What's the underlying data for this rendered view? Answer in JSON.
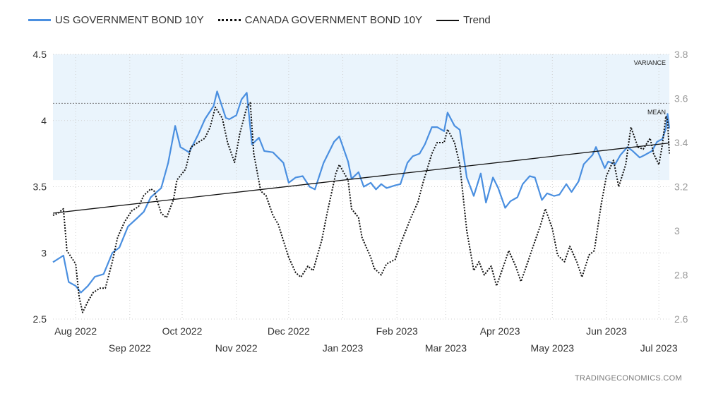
{
  "legend": {
    "us_label": "US GOVERNMENT BOND 10Y",
    "ca_label": "CANADA GOVERNMENT BOND 10Y",
    "trend_label": "Trend"
  },
  "source_label": "TRADINGECONOMICS.COM",
  "colors": {
    "us": "#4a8fe0",
    "ca": "#111111",
    "trend": "#111111",
    "band": "#eaf4fc",
    "grid": "#cfcfcf"
  },
  "chart_data": {
    "type": "line",
    "x_labels_upper": [
      "Aug 2022",
      "Oct 2022",
      "Dec 2022",
      "Feb 2023",
      "Apr 2023",
      "Jun 2023"
    ],
    "x_labels_lower": [
      "Sep 2022",
      "Nov 2022",
      "Jan 2023",
      "Mar 2023",
      "May 2023",
      "Jul 2023"
    ],
    "x_range": [
      "2022-07-19",
      "2023-07-07"
    ],
    "y_left": {
      "ticks": [
        "2.5",
        "3",
        "3.5",
        "4",
        "4.5"
      ],
      "ylim": [
        2.5,
        4.5
      ]
    },
    "y_right": {
      "ticks": [
        "2.6",
        "2.8",
        "3",
        "3.2",
        "3.4",
        "3.6",
        "3.8"
      ],
      "ylim": [
        2.6,
        3.8
      ]
    },
    "annotations": {
      "variance": "VARIANCE",
      "mean": "MEAN"
    },
    "variance_band": {
      "axis": "left",
      "from": 3.55,
      "to": 4.5
    },
    "mean_line": {
      "axis": "left",
      "value": 4.13
    },
    "grid": true,
    "legend_position": "top-left",
    "series": [
      {
        "name": "US GOVERNMENT BOND 10Y",
        "axis": "left",
        "points": [
          [
            "2022-07-19",
            2.93
          ],
          [
            "2022-07-25",
            2.98
          ],
          [
            "2022-07-28",
            2.78
          ],
          [
            "2022-08-01",
            2.75
          ],
          [
            "2022-08-04",
            2.7
          ],
          [
            "2022-08-08",
            2.75
          ],
          [
            "2022-08-12",
            2.82
          ],
          [
            "2022-08-17",
            2.84
          ],
          [
            "2022-08-22",
            3.0
          ],
          [
            "2022-08-26",
            3.04
          ],
          [
            "2022-08-31",
            3.2
          ],
          [
            "2022-09-05",
            3.26
          ],
          [
            "2022-09-09",
            3.31
          ],
          [
            "2022-09-13",
            3.42
          ],
          [
            "2022-09-19",
            3.49
          ],
          [
            "2022-09-23",
            3.68
          ],
          [
            "2022-09-27",
            3.96
          ],
          [
            "2022-09-30",
            3.8
          ],
          [
            "2022-10-05",
            3.76
          ],
          [
            "2022-10-10",
            3.89
          ],
          [
            "2022-10-14",
            4.01
          ],
          [
            "2022-10-19",
            4.11
          ],
          [
            "2022-10-21",
            4.22
          ],
          [
            "2022-10-26",
            4.02
          ],
          [
            "2022-10-28",
            4.01
          ],
          [
            "2022-11-01",
            4.04
          ],
          [
            "2022-11-04",
            4.16
          ],
          [
            "2022-11-07",
            4.21
          ],
          [
            "2022-11-10",
            3.82
          ],
          [
            "2022-11-14",
            3.87
          ],
          [
            "2022-11-17",
            3.77
          ],
          [
            "2022-11-22",
            3.76
          ],
          [
            "2022-11-28",
            3.68
          ],
          [
            "2022-12-01",
            3.53
          ],
          [
            "2022-12-05",
            3.57
          ],
          [
            "2022-12-09",
            3.58
          ],
          [
            "2022-12-13",
            3.5
          ],
          [
            "2022-12-16",
            3.48
          ],
          [
            "2022-12-21",
            3.68
          ],
          [
            "2022-12-27",
            3.84
          ],
          [
            "2022-12-30",
            3.88
          ],
          [
            "2023-01-04",
            3.69
          ],
          [
            "2023-01-06",
            3.56
          ],
          [
            "2023-01-10",
            3.61
          ],
          [
            "2023-01-13",
            3.5
          ],
          [
            "2023-01-17",
            3.53
          ],
          [
            "2023-01-20",
            3.48
          ],
          [
            "2023-01-23",
            3.52
          ],
          [
            "2023-01-26",
            3.49
          ],
          [
            "2023-01-31",
            3.51
          ],
          [
            "2023-02-03",
            3.52
          ],
          [
            "2023-02-07",
            3.68
          ],
          [
            "2023-02-10",
            3.73
          ],
          [
            "2023-02-14",
            3.75
          ],
          [
            "2023-02-17",
            3.82
          ],
          [
            "2023-02-21",
            3.95
          ],
          [
            "2023-02-24",
            3.95
          ],
          [
            "2023-02-28",
            3.92
          ],
          [
            "2023-03-02",
            4.06
          ],
          [
            "2023-03-06",
            3.96
          ],
          [
            "2023-03-09",
            3.93
          ],
          [
            "2023-03-13",
            3.57
          ],
          [
            "2023-03-17",
            3.43
          ],
          [
            "2023-03-21",
            3.6
          ],
          [
            "2023-03-24",
            3.38
          ],
          [
            "2023-03-28",
            3.57
          ],
          [
            "2023-03-31",
            3.49
          ],
          [
            "2023-04-04",
            3.34
          ],
          [
            "2023-04-07",
            3.39
          ],
          [
            "2023-04-11",
            3.42
          ],
          [
            "2023-04-14",
            3.52
          ],
          [
            "2023-04-18",
            3.58
          ],
          [
            "2023-04-21",
            3.57
          ],
          [
            "2023-04-25",
            3.4
          ],
          [
            "2023-04-28",
            3.45
          ],
          [
            "2023-05-02",
            3.43
          ],
          [
            "2023-05-05",
            3.44
          ],
          [
            "2023-05-09",
            3.52
          ],
          [
            "2023-05-12",
            3.46
          ],
          [
            "2023-05-16",
            3.54
          ],
          [
            "2023-05-19",
            3.67
          ],
          [
            "2023-05-24",
            3.74
          ],
          [
            "2023-05-26",
            3.8
          ],
          [
            "2023-05-31",
            3.64
          ],
          [
            "2023-06-02",
            3.69
          ],
          [
            "2023-06-06",
            3.67
          ],
          [
            "2023-06-09",
            3.74
          ],
          [
            "2023-06-13",
            3.8
          ],
          [
            "2023-06-16",
            3.77
          ],
          [
            "2023-06-20",
            3.72
          ],
          [
            "2023-06-23",
            3.74
          ],
          [
            "2023-06-27",
            3.77
          ],
          [
            "2023-06-30",
            3.84
          ],
          [
            "2023-07-03",
            3.86
          ],
          [
            "2023-07-05",
            3.94
          ],
          [
            "2023-07-06",
            4.05
          ],
          [
            "2023-07-07",
            3.94
          ]
        ]
      },
      {
        "name": "CANADA GOVERNMENT BOND 10Y",
        "axis": "right",
        "points": [
          [
            "2022-07-19",
            3.07
          ],
          [
            "2022-07-22",
            3.08
          ],
          [
            "2022-07-25",
            3.1
          ],
          [
            "2022-07-27",
            2.91
          ],
          [
            "2022-08-01",
            2.85
          ],
          [
            "2022-08-03",
            2.7
          ],
          [
            "2022-08-05",
            2.63
          ],
          [
            "2022-08-08",
            2.68
          ],
          [
            "2022-08-11",
            2.72
          ],
          [
            "2022-08-15",
            2.74
          ],
          [
            "2022-08-18",
            2.74
          ],
          [
            "2022-08-22",
            2.86
          ],
          [
            "2022-08-25",
            2.97
          ],
          [
            "2022-08-29",
            3.04
          ],
          [
            "2022-09-02",
            3.09
          ],
          [
            "2022-09-06",
            3.11
          ],
          [
            "2022-09-09",
            3.16
          ],
          [
            "2022-09-13",
            3.19
          ],
          [
            "2022-09-15",
            3.18
          ],
          [
            "2022-09-19",
            3.08
          ],
          [
            "2022-09-22",
            3.06
          ],
          [
            "2022-09-26",
            3.14
          ],
          [
            "2022-09-28",
            3.23
          ],
          [
            "2022-10-03",
            3.28
          ],
          [
            "2022-10-06",
            3.38
          ],
          [
            "2022-10-10",
            3.4
          ],
          [
            "2022-10-14",
            3.42
          ],
          [
            "2022-10-17",
            3.47
          ],
          [
            "2022-10-20",
            3.56
          ],
          [
            "2022-10-24",
            3.51
          ],
          [
            "2022-10-27",
            3.4
          ],
          [
            "2022-10-31",
            3.31
          ],
          [
            "2022-11-03",
            3.44
          ],
          [
            "2022-11-07",
            3.56
          ],
          [
            "2022-11-09",
            3.58
          ],
          [
            "2022-11-11",
            3.35
          ],
          [
            "2022-11-15",
            3.18
          ],
          [
            "2022-11-18",
            3.16
          ],
          [
            "2022-11-22",
            3.07
          ],
          [
            "2022-11-25",
            3.03
          ],
          [
            "2022-11-29",
            2.93
          ],
          [
            "2022-12-01",
            2.88
          ],
          [
            "2022-12-05",
            2.81
          ],
          [
            "2022-12-08",
            2.79
          ],
          [
            "2022-12-12",
            2.84
          ],
          [
            "2022-12-15",
            2.82
          ],
          [
            "2022-12-20",
            2.96
          ],
          [
            "2022-12-23",
            3.08
          ],
          [
            "2022-12-28",
            3.26
          ],
          [
            "2022-12-30",
            3.3
          ],
          [
            "2023-01-04",
            3.23
          ],
          [
            "2023-01-06",
            3.1
          ],
          [
            "2023-01-10",
            3.06
          ],
          [
            "2023-01-12",
            2.97
          ],
          [
            "2023-01-17",
            2.88
          ],
          [
            "2023-01-19",
            2.83
          ],
          [
            "2023-01-23",
            2.8
          ],
          [
            "2023-01-26",
            2.85
          ],
          [
            "2023-01-31",
            2.87
          ],
          [
            "2023-02-03",
            2.94
          ],
          [
            "2023-02-06",
            3.0
          ],
          [
            "2023-02-09",
            3.06
          ],
          [
            "2023-02-13",
            3.13
          ],
          [
            "2023-02-16",
            3.22
          ],
          [
            "2023-02-21",
            3.35
          ],
          [
            "2023-02-24",
            3.4
          ],
          [
            "2023-02-28",
            3.4
          ],
          [
            "2023-03-02",
            3.46
          ],
          [
            "2023-03-06",
            3.4
          ],
          [
            "2023-03-09",
            3.3
          ],
          [
            "2023-03-13",
            3.0
          ],
          [
            "2023-03-17",
            2.82
          ],
          [
            "2023-03-20",
            2.86
          ],
          [
            "2023-03-23",
            2.8
          ],
          [
            "2023-03-27",
            2.84
          ],
          [
            "2023-03-30",
            2.75
          ],
          [
            "2023-04-03",
            2.84
          ],
          [
            "2023-04-06",
            2.91
          ],
          [
            "2023-04-10",
            2.84
          ],
          [
            "2023-04-13",
            2.77
          ],
          [
            "2023-04-17",
            2.86
          ],
          [
            "2023-04-20",
            2.93
          ],
          [
            "2023-04-24",
            3.02
          ],
          [
            "2023-04-27",
            3.1
          ],
          [
            "2023-05-01",
            3.01
          ],
          [
            "2023-05-04",
            2.89
          ],
          [
            "2023-05-08",
            2.86
          ],
          [
            "2023-05-11",
            2.93
          ],
          [
            "2023-05-15",
            2.86
          ],
          [
            "2023-05-18",
            2.79
          ],
          [
            "2023-05-22",
            2.89
          ],
          [
            "2023-05-25",
            2.91
          ],
          [
            "2023-05-29",
            3.12
          ],
          [
            "2023-06-01",
            3.25
          ],
          [
            "2023-06-05",
            3.32
          ],
          [
            "2023-06-08",
            3.2
          ],
          [
            "2023-06-12",
            3.3
          ],
          [
            "2023-06-15",
            3.47
          ],
          [
            "2023-06-19",
            3.38
          ],
          [
            "2023-06-22",
            3.37
          ],
          [
            "2023-06-26",
            3.42
          ],
          [
            "2023-06-28",
            3.35
          ],
          [
            "2023-07-01",
            3.3
          ],
          [
            "2023-07-03",
            3.39
          ],
          [
            "2023-07-05",
            3.52
          ],
          [
            "2023-07-06",
            3.5
          ],
          [
            "2023-07-07",
            3.35
          ]
        ]
      },
      {
        "name": "Trend",
        "axis": "left",
        "points": [
          [
            "2022-07-19",
            3.3
          ],
          [
            "2023-07-07",
            3.83
          ]
        ]
      }
    ]
  }
}
